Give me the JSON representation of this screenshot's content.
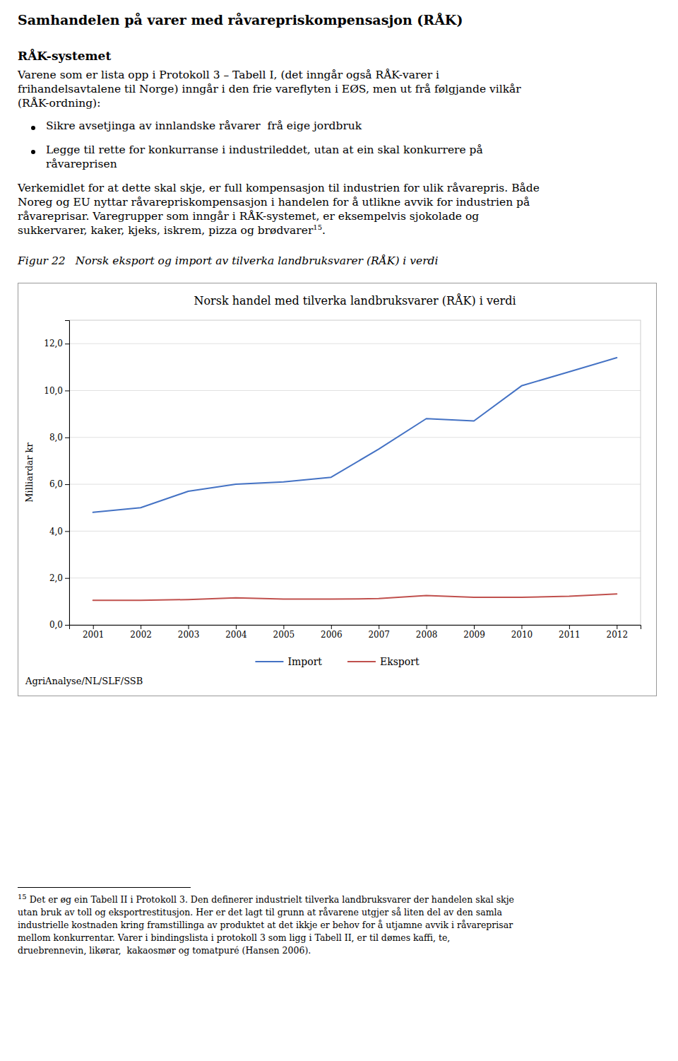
{
  "title": "Samhandelen på varer med råvarepriskompensasjon (RÅK)",
  "section_title": "RÅK-systemet",
  "paragraph_1": [
    "Varene som er lista opp i Protokoll 3 – Tabell I, (det inngår også RÅK-varer i",
    "frihandelsavtalene til Norge) inngår i den frie vareflyten i EØS, men ut frå følgjande vilkår",
    "(RÅK-ordning):"
  ],
  "bullets": [
    [
      "Sikre avsetjinga av innlandske råvarer  frå eige jordbruk"
    ],
    [
      "Legge til rette for konkurranse i industrileddet, utan at ein skal konkurrere på",
      "råvareprisen"
    ]
  ],
  "paragraph_2": [
    "Verkemidlet for at dette skal skje, er full kompensasjon til industrien for ulik råvarepris. Både",
    "Noreg og EU nyttar råvarepriskompensasjon i handelen for å utlikne avvik for industrien på",
    "råvareprisar. Varegrupper som inngår i RÅK-systemet, er eksempelvis sjokolade og",
    "sukkervarer, kaker, kjeks, iskrem, pizza og brødvarer"
  ],
  "paragraph_2_note": "15",
  "paragraph_2_end": ".",
  "figure_label": "Figur 22",
  "figure_caption": "Norsk eksport og import av tilverka landbruksvarer (RÅK) i verdi",
  "chart_data": {
    "type": "line",
    "title": "Norsk handel med tilverka landbruksvarer (RÅK) i verdi",
    "y_label": "Milliardar kr",
    "x": [
      2001,
      2002,
      2003,
      2004,
      2005,
      2006,
      2007,
      2008,
      2009,
      2010,
      2011,
      2012
    ],
    "series": [
      {
        "name": "Import",
        "color": "#4472C4",
        "values": [
          4.8,
          5.0,
          5.7,
          6.0,
          6.1,
          6.3,
          7.5,
          8.8,
          8.7,
          10.2,
          10.8,
          11.4
        ]
      },
      {
        "name": "Eksport",
        "color": "#C0504D",
        "values": [
          1.05,
          1.05,
          1.08,
          1.15,
          1.1,
          1.1,
          1.12,
          1.25,
          1.18,
          1.18,
          1.22,
          1.32
        ]
      }
    ],
    "xlim": [
      2000.5,
      2012.5
    ],
    "xticks": [
      2001,
      2002,
      2003,
      2004,
      2005,
      2006,
      2007,
      2008,
      2009,
      2010,
      2011,
      2012
    ],
    "ylim": [
      0,
      13
    ],
    "yticks": [
      {
        "value": 0,
        "label": "0,0"
      },
      {
        "value": 2,
        "label": "2,0"
      },
      {
        "value": 4,
        "label": "4,0"
      },
      {
        "value": 6,
        "label": "6,0"
      },
      {
        "value": 8,
        "label": "8,0"
      },
      {
        "value": 10,
        "label": "10,0"
      },
      {
        "value": 12,
        "label": "12,0"
      }
    ],
    "grid": true,
    "legend": "bottom",
    "source": "AgriAnalyse/NL/SLF/SSB"
  },
  "footnote": {
    "number": "15",
    "lines": [
      "Det er øg ein Tabell II i Protokoll 3. Den definerer industrielt tilverka landbruksvarer der handelen skal skje",
      "utan bruk av toll og eksportrestitusjon. Her er det lagt til grunn at råvarene utgjer så liten del av den samla",
      "industrielle kostnaden kring framstillinga av produktet at det ikkje er behov for å utjamne avvik i råvareprisar",
      "mellom konkurrentar. Varer i bindingslista i protokoll 3 som ligg i Tabell II, er til dømes kaffi, te,",
      "druebrennevin, likørar,  kakaosmør og tomatpuré (Hansen 2006)."
    ]
  }
}
